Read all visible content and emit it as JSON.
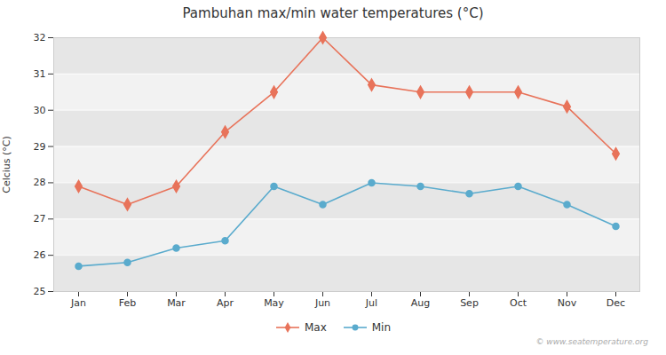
{
  "chart_data": {
    "type": "line",
    "title": "Pambuhan max/min water temperatures (°C)",
    "ylabel": "Celcius (°C)",
    "categories": [
      "Jan",
      "Feb",
      "Mar",
      "Apr",
      "May",
      "Jun",
      "Jul",
      "Aug",
      "Sep",
      "Oct",
      "Nov",
      "Dec"
    ],
    "series": [
      {
        "name": "Max",
        "color": "#e8735a",
        "marker": "diamond",
        "values": [
          27.9,
          27.4,
          27.9,
          29.4,
          30.5,
          32.0,
          30.7,
          30.5,
          30.5,
          30.5,
          30.1,
          28.8
        ]
      },
      {
        "name": "Min",
        "color": "#5aabcd",
        "marker": "circle",
        "values": [
          25.7,
          25.8,
          26.2,
          26.4,
          27.9,
          27.4,
          28.0,
          27.9,
          27.7,
          27.9,
          27.4,
          26.8
        ]
      }
    ],
    "ylim": [
      25,
      32
    ],
    "yticks": [
      25,
      26,
      27,
      28,
      29,
      30,
      31,
      32
    ],
    "grid": true,
    "legend": "bottom",
    "annotations": [
      "© www.seatemperature.org"
    ]
  }
}
